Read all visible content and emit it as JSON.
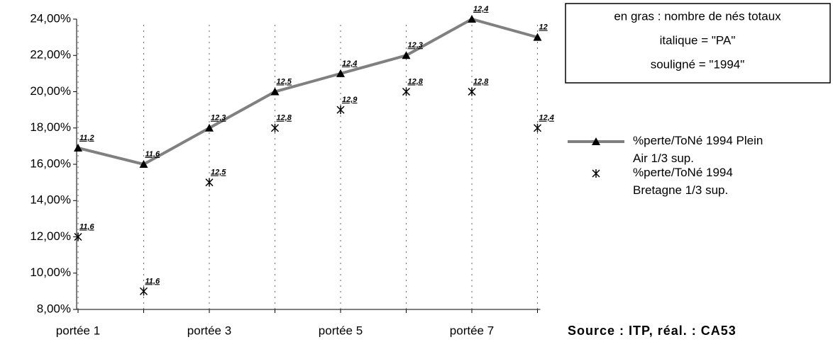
{
  "chart_data": {
    "type": "line",
    "categories": [
      "portée 1",
      null,
      "portée 3",
      null,
      "portée 5",
      null,
      "portée 7",
      null
    ],
    "series": [
      {
        "name": "%perte/ToNé 1994 Plein Air 1/3 sup.",
        "color": "#808080",
        "marker": "triangle",
        "values": [
          16.9,
          16.0,
          18.0,
          20.0,
          21.0,
          22.0,
          24.0,
          23.0
        ],
        "point_labels": [
          "11,2",
          "11,6",
          "12,3",
          "12,5",
          "12,4",
          "12,3",
          "12,4",
          "12"
        ]
      },
      {
        "name": "%perte/ToNé 1994 Bretagne 1/3 sup.",
        "color": "#000000",
        "marker": "star",
        "values": [
          12.0,
          9.0,
          15.0,
          18.0,
          19.0,
          20.0,
          20.0,
          18.0
        ],
        "point_labels": [
          "11,6",
          "11,6",
          "12,5",
          "12,8",
          "12,9",
          "12,8",
          "12,8",
          "12,4"
        ]
      }
    ],
    "ylim": [
      8,
      24
    ],
    "yticks": [
      {
        "value": 8,
        "label": "8,00%"
      },
      {
        "value": 10,
        "label": "10,00%"
      },
      {
        "value": 12,
        "label": "12,00%"
      },
      {
        "value": 14,
        "label": "14,00%"
      },
      {
        "value": 16,
        "label": "16,00%"
      },
      {
        "value": 18,
        "label": "18,00%"
      },
      {
        "value": 20,
        "label": "20,00%"
      },
      {
        "value": 22,
        "label": "22,00%"
      },
      {
        "value": 24,
        "label": "24,00%"
      }
    ],
    "notes": [
      "en gras : nombre de nés totaux",
      "italique = \"PA\"",
      "souligné = \"1994\""
    ],
    "source": "Source : ITP, réal. : CA53"
  }
}
